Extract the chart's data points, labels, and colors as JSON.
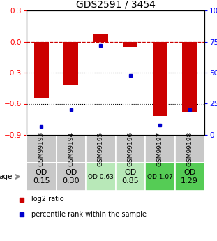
{
  "title": "GDS2591 / 3454",
  "samples": [
    "GSM99193",
    "GSM99194",
    "GSM99195",
    "GSM99196",
    "GSM99197",
    "GSM99198"
  ],
  "log2_ratios": [
    -0.54,
    -0.42,
    0.08,
    -0.05,
    -0.72,
    -0.68
  ],
  "percentile_ranks": [
    7,
    20,
    72,
    48,
    8,
    20
  ],
  "ylim_left": [
    -0.9,
    0.3
  ],
  "ylim_right": [
    0,
    100
  ],
  "bar_color": "#cc0000",
  "dot_color": "#0000cc",
  "bar_width": 0.5,
  "yticks_left": [
    0.3,
    0.0,
    -0.3,
    -0.6,
    -0.9
  ],
  "yticks_right": [
    100,
    75,
    50,
    25,
    0
  ],
  "hline_y": 0.0,
  "dotted_lines": [
    -0.3,
    -0.6
  ],
  "row_labels": [
    "OD\n0.15",
    "OD\n0.30",
    "OD 0.63",
    "OD\n0.85",
    "OD 1.07",
    "OD\n1.29"
  ],
  "row_colors": [
    "#c8c8c8",
    "#c8c8c8",
    "#b8e8b8",
    "#b8e8b8",
    "#55cc55",
    "#55cc55"
  ],
  "row_fontsizes": [
    8,
    8,
    6.5,
    8,
    6.5,
    8
  ],
  "legend_items": [
    {
      "label": "log2 ratio",
      "color": "#cc0000"
    },
    {
      "label": "percentile rank within the sample",
      "color": "#0000cc"
    }
  ],
  "title_fontsize": 10,
  "tick_fontsize": 7.5,
  "sample_bg_color": "#c8c8c8",
  "sample_fontsize": 6.5
}
